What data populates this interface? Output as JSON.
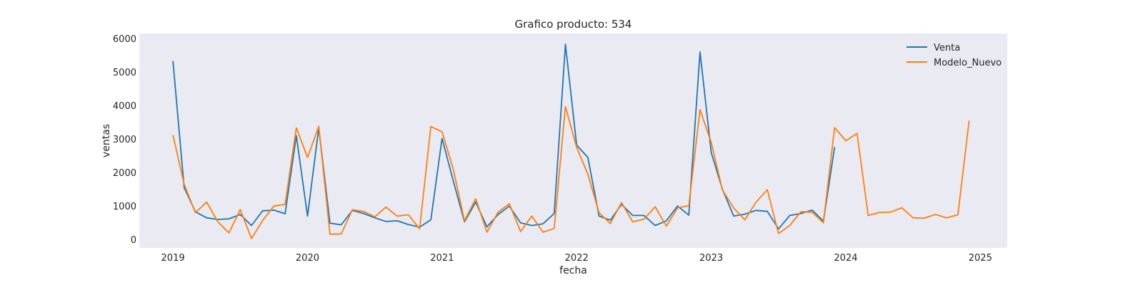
{
  "chart_data": {
    "type": "line",
    "title": "Grafico producto: 534",
    "xlabel": "fecha",
    "ylabel": "ventas",
    "xlim": [
      2018.75,
      2025.2
    ],
    "ylim": [
      -250,
      6150
    ],
    "x_ticks": [
      2019,
      2020,
      2021,
      2022,
      2023,
      2024,
      2025
    ],
    "x_tick_labels": [
      "2019",
      "2020",
      "2021",
      "2022",
      "2023",
      "2024",
      "2025"
    ],
    "y_ticks": [
      0,
      1000,
      2000,
      3000,
      4000,
      5000,
      6000
    ],
    "y_tick_labels": [
      "0",
      "1000",
      "2000",
      "3000",
      "4000",
      "5000",
      "6000"
    ],
    "grid": false,
    "background": "#eaeaf2",
    "legend_position": "upper-right",
    "series": [
      {
        "name": "Venta",
        "color": "#1f77b4",
        "start_year": 2019,
        "x": [
          "2019-01",
          "2019-02",
          "2019-03",
          "2019-04",
          "2019-05",
          "2019-06",
          "2019-07",
          "2019-08",
          "2019-09",
          "2019-10",
          "2019-11",
          "2019-12",
          "2020-01",
          "2020-02",
          "2020-03",
          "2020-04",
          "2020-05",
          "2020-06",
          "2020-07",
          "2020-08",
          "2020-09",
          "2020-10",
          "2020-11",
          "2020-12",
          "2021-01",
          "2021-02",
          "2021-03",
          "2021-04",
          "2021-05",
          "2021-06",
          "2021-07",
          "2021-08",
          "2021-09",
          "2021-10",
          "2021-11",
          "2021-12",
          "2022-01",
          "2022-02",
          "2022-03",
          "2022-04",
          "2022-05",
          "2022-06",
          "2022-07",
          "2022-08",
          "2022-09",
          "2022-10",
          "2022-11",
          "2022-12",
          "2023-01",
          "2023-02",
          "2023-03",
          "2023-04",
          "2023-05",
          "2023-06",
          "2023-07",
          "2023-08",
          "2023-09",
          "2023-10",
          "2023-11",
          "2023-12"
        ],
        "values": [
          5330,
          1550,
          830,
          650,
          600,
          620,
          750,
          420,
          860,
          880,
          770,
          3100,
          700,
          3330,
          490,
          440,
          870,
          780,
          650,
          540,
          560,
          450,
          370,
          590,
          3020,
          1750,
          530,
          1120,
          380,
          750,
          1000,
          500,
          420,
          470,
          780,
          5830,
          2820,
          2450,
          700,
          580,
          1050,
          720,
          720,
          420,
          560,
          1000,
          730,
          5600,
          2600,
          1500,
          700,
          760,
          870,
          840,
          320,
          720,
          780,
          880,
          550,
          2760
        ]
      },
      {
        "name": "Modelo_Nuevo",
        "color": "#ff7f0e",
        "start_year": 2019,
        "x": [
          "2019-01",
          "2019-02",
          "2019-03",
          "2019-04",
          "2019-05",
          "2019-06",
          "2019-07",
          "2019-08",
          "2019-09",
          "2019-10",
          "2019-11",
          "2019-12",
          "2020-01",
          "2020-02",
          "2020-03",
          "2020-04",
          "2020-05",
          "2020-06",
          "2020-07",
          "2020-08",
          "2020-09",
          "2020-10",
          "2020-11",
          "2020-12",
          "2021-01",
          "2021-02",
          "2021-03",
          "2021-04",
          "2021-05",
          "2021-06",
          "2021-07",
          "2021-08",
          "2021-09",
          "2021-10",
          "2021-11",
          "2021-12",
          "2022-01",
          "2022-02",
          "2022-03",
          "2022-04",
          "2022-05",
          "2022-06",
          "2022-07",
          "2022-08",
          "2022-09",
          "2022-10",
          "2022-11",
          "2022-12",
          "2023-01",
          "2023-02",
          "2023-03",
          "2023-04",
          "2023-05",
          "2023-06",
          "2023-07",
          "2023-08",
          "2023-09",
          "2023-10",
          "2023-11",
          "2023-12",
          "2024-01",
          "2024-02",
          "2024-03",
          "2024-04",
          "2024-05",
          "2024-06",
          "2024-07",
          "2024-08",
          "2024-09",
          "2024-10",
          "2024-11",
          "2024-12"
        ],
        "values": [
          3120,
          1650,
          800,
          1120,
          530,
          200,
          900,
          30,
          570,
          1000,
          1050,
          3330,
          2450,
          3380,
          160,
          170,
          890,
          840,
          680,
          970,
          700,
          740,
          320,
          3370,
          3220,
          2100,
          560,
          1220,
          220,
          820,
          1070,
          240,
          700,
          220,
          330,
          3970,
          2750,
          1950,
          800,
          480,
          1100,
          530,
          610,
          980,
          400,
          950,
          1010,
          3880,
          2900,
          1480,
          940,
          590,
          1120,
          1490,
          180,
          420,
          830,
          820,
          500,
          3340,
          2950,
          3170,
          720,
          810,
          820,
          950,
          650,
          640,
          750,
          650,
          740,
          3550
        ]
      }
    ]
  }
}
